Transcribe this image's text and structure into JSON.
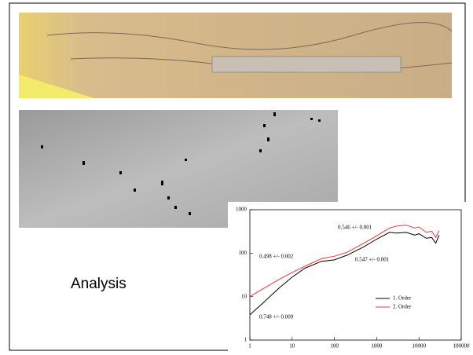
{
  "label": "Analysis",
  "chart_data": {
    "type": "line",
    "x": [
      1,
      2,
      5,
      10,
      20,
      50,
      100,
      200,
      500,
      1000,
      2000,
      3000,
      5000,
      8000,
      10000,
      15000,
      20000,
      25000,
      30000
    ],
    "series": [
      {
        "name": "1. Order",
        "color": "#000000",
        "values": [
          3.8,
          7,
          16,
          28,
          45,
          65,
          70,
          90,
          140,
          210,
          300,
          290,
          300,
          260,
          280,
          220,
          230,
          170,
          260
        ]
      },
      {
        "name": "2. Order",
        "color": "#ff3030",
        "values": [
          10,
          15,
          25,
          36,
          50,
          75,
          85,
          105,
          170,
          250,
          380,
          420,
          440,
          380,
          400,
          300,
          320,
          230,
          330
        ]
      }
    ],
    "annotations": [
      "0.546 +/- 0.001",
      "0.498 +/- 0.002",
      "0.547 +/- 0.001",
      "0.748 +/- 0.009"
    ],
    "xscale": "log",
    "yscale": "log",
    "xlim": [
      1,
      100000
    ],
    "ylim": [
      1,
      1000
    ],
    "xticks": [
      1,
      10,
      100,
      1000,
      10000,
      100000
    ],
    "yticks": [
      1,
      10,
      100,
      1000
    ],
    "grid": false,
    "legend": "lower right"
  }
}
